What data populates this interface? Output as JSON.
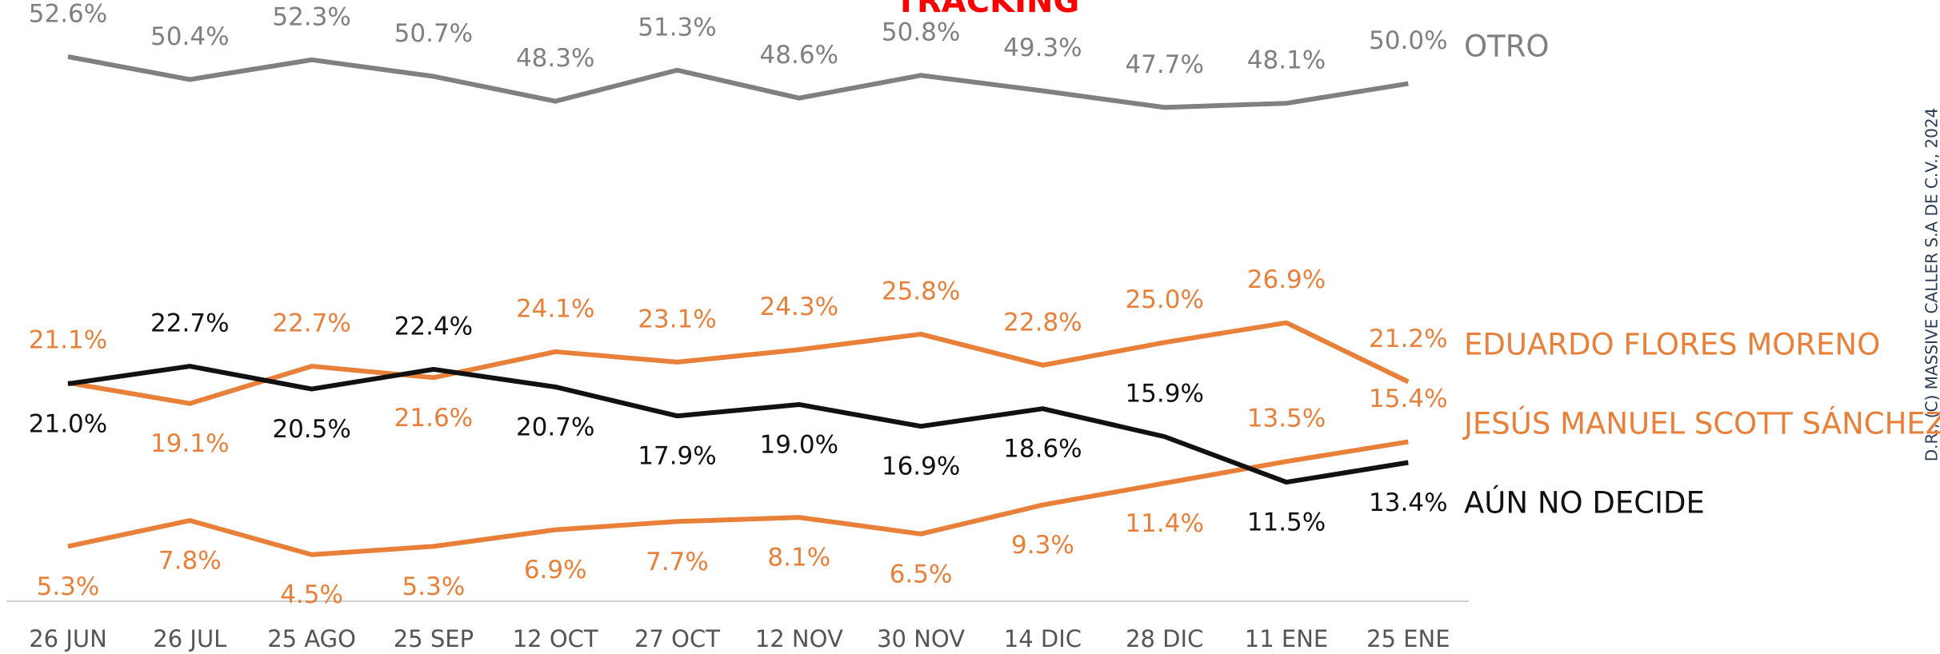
{
  "chart_data": {
    "type": "line",
    "title": "TRACKING",
    "watermark": "D.R., (C) MASSIVE CALLER S.A DE C.V., 2024",
    "categories": [
      "26 JUN",
      "26 JUL",
      "25 AGO",
      "25 SEP",
      "12 OCT",
      "27 OCT",
      "12 NOV",
      "30 NOV",
      "14 DIC",
      "28 DIC",
      "11 ENE",
      "25 ENE"
    ],
    "ylim": [
      0,
      58
    ],
    "series": [
      {
        "name": "OTRO",
        "color": "#808080",
        "values": [
          52.6,
          50.4,
          52.3,
          50.7,
          48.3,
          51.3,
          48.6,
          50.8,
          49.3,
          47.7,
          48.1,
          50.0
        ],
        "value_labels": [
          "52.6%",
          "50.4%",
          "52.3%",
          "50.7%",
          "48.3%",
          "51.3%",
          "48.6%",
          "50.8%",
          "49.3%",
          "47.7%",
          "48.1%",
          "50.0%"
        ]
      },
      {
        "name": "EDUARDO FLORES MORENO",
        "color": "#e8803a",
        "values": [
          21.1,
          19.1,
          22.7,
          21.6,
          24.1,
          23.1,
          24.3,
          25.8,
          22.8,
          25.0,
          26.9,
          21.2
        ],
        "value_labels": [
          "21.1%",
          "19.1%",
          "22.7%",
          "21.6%",
          "24.1%",
          "23.1%",
          "24.3%",
          "25.8%",
          "22.8%",
          "25.0%",
          "26.9%",
          "21.2%"
        ]
      },
      {
        "name": "JESÚS MANUEL SCOTT SÁNCHEZ",
        "color": "#e8803a",
        "values": [
          5.3,
          7.8,
          4.5,
          5.3,
          6.9,
          7.7,
          8.1,
          6.5,
          9.3,
          11.4,
          13.5,
          15.4
        ],
        "value_labels": [
          "5.3%",
          "7.8%",
          "4.5%",
          "5.3%",
          "6.9%",
          "7.7%",
          "8.1%",
          "6.5%",
          "9.3%",
          "11.4%",
          "13.5%",
          "15.4%"
        ]
      },
      {
        "name": "AÚN NO DECIDE",
        "color": "#111111",
        "values": [
          21.0,
          22.7,
          20.5,
          22.4,
          20.7,
          17.9,
          19.0,
          16.9,
          18.6,
          15.9,
          11.5,
          13.4
        ],
        "value_labels": [
          "21.0%",
          "22.7%",
          "20.5%",
          "22.4%",
          "20.7%",
          "17.9%",
          "19.0%",
          "16.9%",
          "18.6%",
          "15.9%",
          "11.5%",
          "13.4%"
        ]
      }
    ]
  }
}
